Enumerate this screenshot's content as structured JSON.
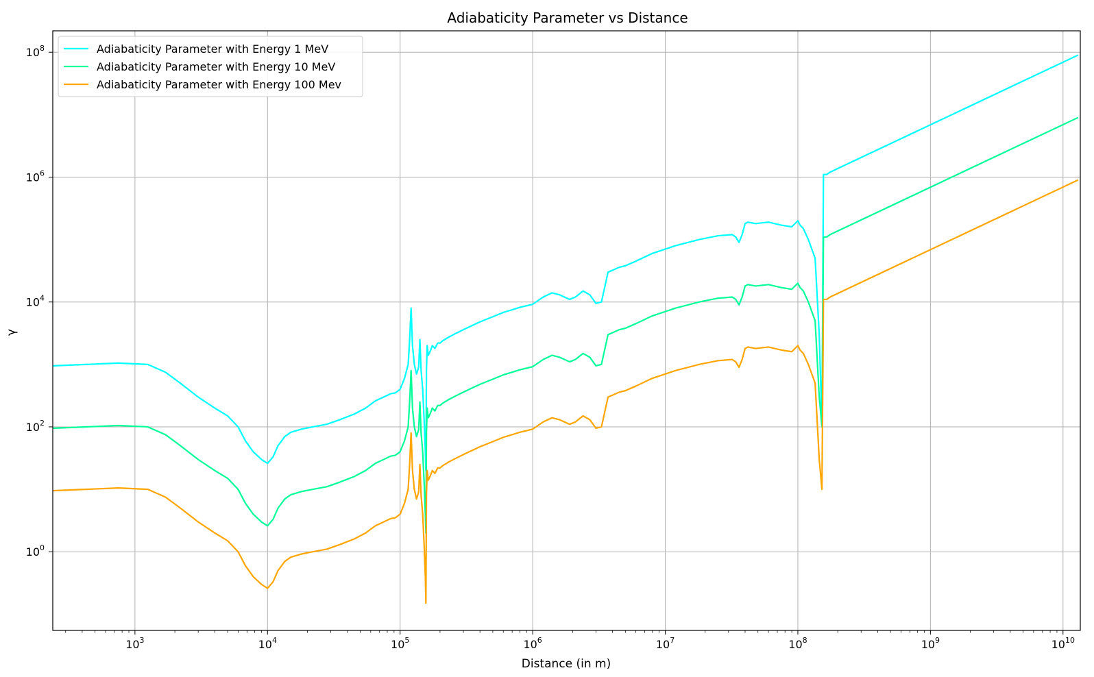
{
  "chart_data": {
    "type": "line",
    "title": "Adiabaticity Parameter vs Distance",
    "xlabel": "Distance (in m)",
    "ylabel": "γ",
    "x_scale": "log",
    "y_scale": "log",
    "xlim": [
      240,
      13500000000
    ],
    "ylim": [
      0.055,
      220000000
    ],
    "grid": true,
    "legend_position": "top-left",
    "x_ticks": [
      {
        "exp": "3",
        "value": 1000
      },
      {
        "exp": "4",
        "value": 10000
      },
      {
        "exp": "5",
        "value": 100000
      },
      {
        "exp": "6",
        "value": 1000000
      },
      {
        "exp": "7",
        "value": 10000000
      },
      {
        "exp": "8",
        "value": 100000000
      },
      {
        "exp": "9",
        "value": 1000000000
      },
      {
        "exp": "10",
        "value": 10000000000
      }
    ],
    "y_ticks": [
      {
        "exp": "0",
        "value": 1
      },
      {
        "exp": "2",
        "value": 100
      },
      {
        "exp": "4",
        "value": 10000
      },
      {
        "exp": "6",
        "value": 1000000
      },
      {
        "exp": "8",
        "value": 100000000
      }
    ],
    "tick_base": "10",
    "x": [
      240,
      750,
      1250,
      1700,
      2200,
      3000,
      4000,
      5000,
      6000,
      6800,
      7800,
      9000,
      10000,
      11000,
      12000,
      13500,
      15000,
      18000,
      22000,
      28000,
      35000,
      45000,
      55000,
      65000,
      75000,
      85000,
      92000,
      100000,
      108000,
      115000,
      118000,
      121000,
      124000,
      128000,
      133000,
      138000,
      141000,
      144000,
      148000,
      152000,
      155000,
      156500,
      158000,
      160000,
      163000,
      168000,
      175000,
      183000,
      192000,
      200000,
      210000,
      230000,
      260000,
      300000,
      350000,
      400000,
      500000,
      600000,
      700000,
      800000,
      1000000,
      1200000,
      1400000,
      1600000,
      1900000,
      2100000,
      2400000,
      2700000,
      3000000,
      3300000,
      3700000,
      4100000,
      4500000,
      5000000,
      6000000,
      8000000,
      12000000,
      18000000,
      25000000,
      32000000,
      34000000,
      36000000,
      38000000,
      40000000,
      42000000,
      48000000,
      60000000,
      75000000,
      90000000,
      100000000,
      104000000,
      110000000,
      120000000,
      135000000,
      145000000,
      152000000,
      156000000,
      160000000,
      165000000,
      175000000,
      13000000000
    ],
    "series": [
      {
        "name": "Adiabaticity Parameter with Energy 1 MeV",
        "color": "#00ffff",
        "values": [
          950,
          1050,
          1000,
          750,
          500,
          300,
          200,
          150,
          100,
          60,
          40,
          30,
          26,
          33,
          50,
          70,
          82,
          92,
          100,
          110,
          130,
          160,
          200,
          260,
          300,
          340,
          350,
          400,
          600,
          1000,
          2500,
          8000,
          2000,
          1000,
          700,
          900,
          2500,
          800,
          400,
          120,
          40,
          20,
          800,
          2000,
          1400,
          1600,
          2000,
          1800,
          2200,
          2200,
          2400,
          2700,
          3100,
          3600,
          4200,
          4800,
          5800,
          6800,
          7500,
          8200,
          9200,
          12000,
          14000,
          13000,
          11000,
          12000,
          15000,
          13000,
          9500,
          10000,
          30000,
          33000,
          36000,
          38000,
          45000,
          60000,
          80000,
          100000,
          115000,
          120000,
          110000,
          90000,
          120000,
          180000,
          190000,
          180000,
          190000,
          170000,
          160000,
          200000,
          170000,
          150000,
          100000,
          50000,
          3000,
          100,
          1100000,
          1100000,
          1100000,
          1200000,
          90000000
        ]
      },
      {
        "name": "Adiabaticity Parameter with Energy 10 MeV",
        "color": "#00ff99",
        "values": [
          95,
          105,
          100,
          75,
          50,
          30,
          20,
          15,
          10,
          6,
          4,
          3,
          2.6,
          3.3,
          5,
          7,
          8.2,
          9.2,
          10,
          11,
          13,
          16,
          20,
          26,
          30,
          34,
          35,
          40,
          60,
          100,
          250,
          800,
          200,
          100,
          70,
          90,
          250,
          80,
          40,
          12,
          4,
          2,
          80,
          200,
          140,
          160,
          200,
          180,
          220,
          220,
          240,
          270,
          310,
          360,
          420,
          480,
          580,
          680,
          750,
          820,
          920,
          1200,
          1400,
          1300,
          1100,
          1200,
          1500,
          1300,
          950,
          1000,
          3000,
          3300,
          3600,
          3800,
          4500,
          6000,
          8000,
          10000,
          11500,
          12000,
          11000,
          9000,
          12000,
          18000,
          19000,
          18000,
          19000,
          17000,
          16000,
          20000,
          17000,
          15000,
          10000,
          5000,
          300,
          100,
          110000,
          110000,
          110000,
          120000,
          9000000
        ]
      },
      {
        "name": "Adiabaticity Parameter with Energy 100 Mev",
        "color": "#ffa500",
        "values": [
          9.5,
          10.5,
          10,
          7.5,
          5,
          3,
          2,
          1.5,
          1,
          0.6,
          0.4,
          0.3,
          0.26,
          0.33,
          0.5,
          0.7,
          0.82,
          0.92,
          1,
          1.1,
          1.3,
          1.6,
          2,
          2.6,
          3,
          3.4,
          3.5,
          4,
          6,
          10,
          25,
          80,
          20,
          10,
          7,
          9,
          25,
          8,
          4,
          1.2,
          0.4,
          0.15,
          8,
          20,
          14,
          16,
          20,
          18,
          22,
          22,
          24,
          27,
          31,
          36,
          42,
          48,
          58,
          68,
          75,
          82,
          92,
          120,
          140,
          130,
          110,
          120,
          150,
          130,
          95,
          100,
          300,
          330,
          360,
          380,
          450,
          600,
          800,
          1000,
          1150,
          1200,
          1100,
          900,
          1200,
          1800,
          1900,
          1800,
          1900,
          1700,
          1600,
          2000,
          1700,
          1500,
          1000,
          500,
          30,
          10,
          11000,
          11000,
          11000,
          12000,
          900000
        ]
      }
    ]
  }
}
